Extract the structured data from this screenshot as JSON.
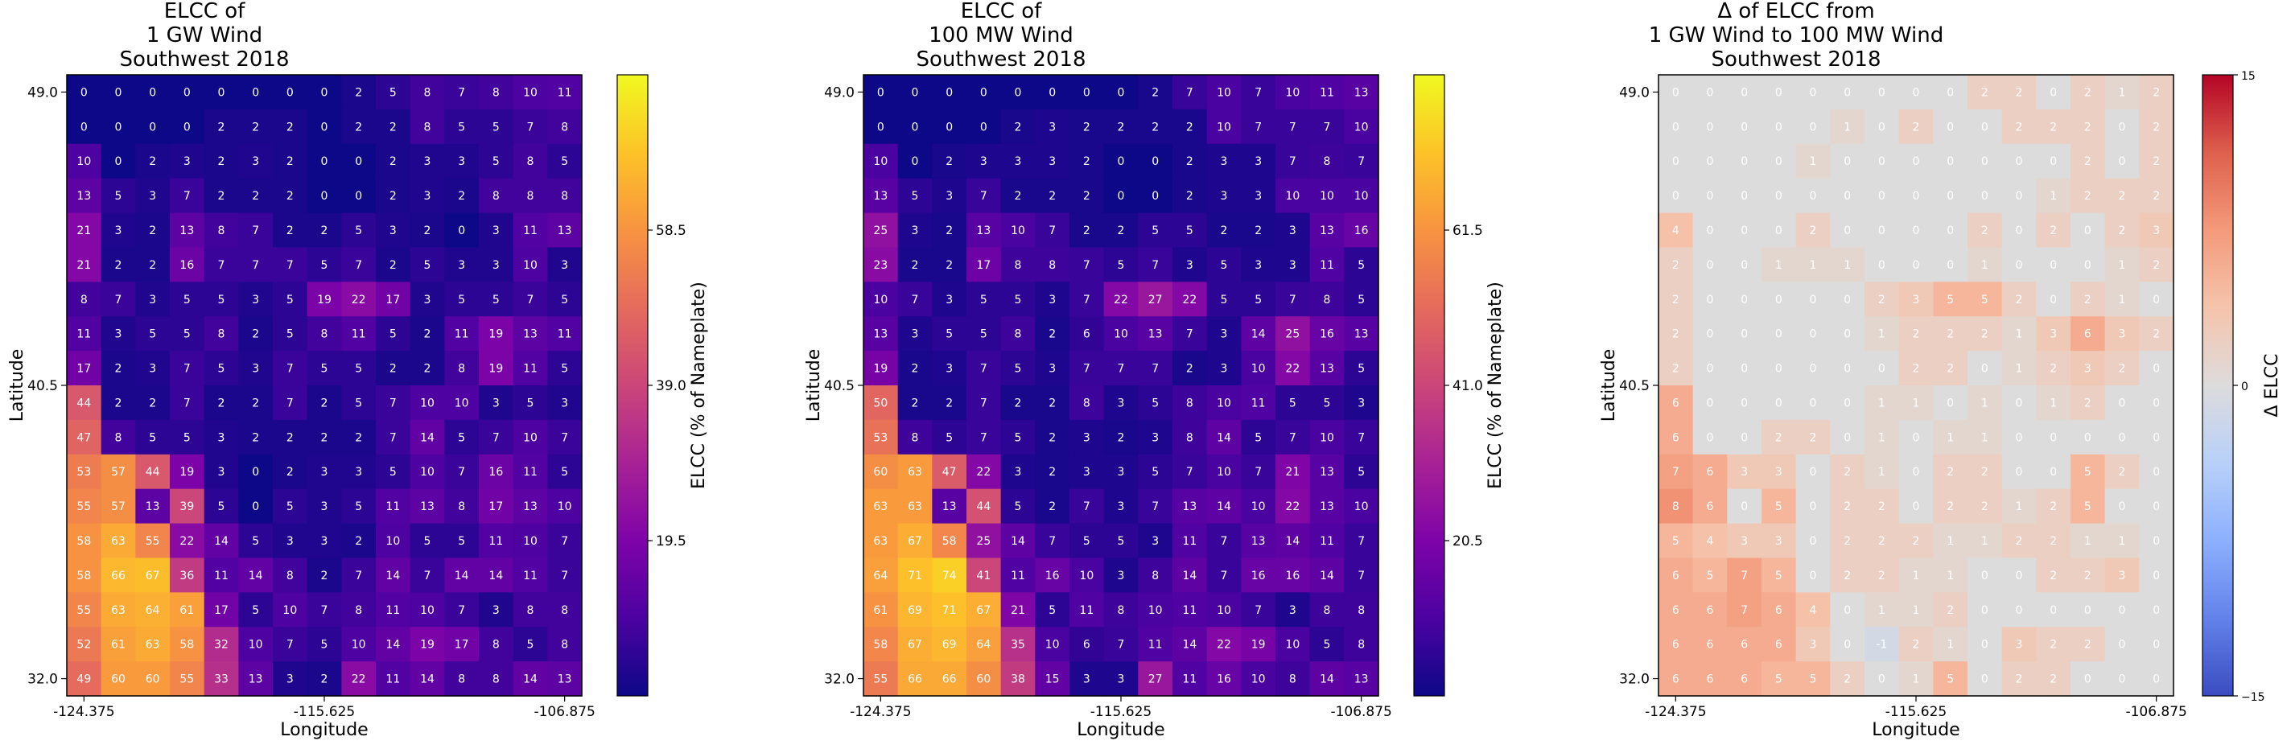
{
  "chart_data": [
    {
      "type": "heatmap",
      "title": "ELCC of\n1 GW Wind\nSouthwest 2018",
      "xlabel": "Longitude",
      "ylabel": "Latitude",
      "xticks": [
        "-124.375",
        "-115.625",
        "-106.875"
      ],
      "yticks": [
        "49.0",
        "40.5",
        "32.0"
      ],
      "colorbar_label": "ELCC (% of Nameplate)",
      "colorbar_ticks": [
        19.5,
        39.0,
        58.5
      ],
      "colorbar_tick_labels": [
        "19.5",
        "39.0",
        "58.5"
      ],
      "colormap": "plasma",
      "vmin": 0,
      "vmax": 78,
      "values": [
        [
          0,
          0,
          0,
          0,
          0,
          0,
          0,
          0,
          2,
          5,
          8,
          7,
          8,
          10,
          11
        ],
        [
          0,
          0,
          0,
          0,
          2,
          2,
          2,
          0,
          2,
          2,
          8,
          5,
          5,
          7,
          8
        ],
        [
          10,
          0,
          2,
          3,
          2,
          3,
          2,
          0,
          0,
          2,
          3,
          3,
          5,
          8,
          5
        ],
        [
          13,
          5,
          3,
          7,
          2,
          2,
          2,
          0,
          0,
          2,
          3,
          2,
          8,
          8,
          8
        ],
        [
          21,
          3,
          2,
          13,
          8,
          7,
          2,
          2,
          5,
          3,
          2,
          0,
          3,
          11,
          13
        ],
        [
          21,
          2,
          2,
          16,
          7,
          7,
          7,
          5,
          7,
          2,
          5,
          3,
          3,
          10,
          3
        ],
        [
          8,
          7,
          3,
          5,
          5,
          3,
          5,
          19,
          22,
          17,
          3,
          5,
          5,
          7,
          5
        ],
        [
          11,
          3,
          5,
          5,
          8,
          2,
          5,
          8,
          11,
          5,
          2,
          11,
          19,
          13,
          11
        ],
        [
          17,
          2,
          3,
          7,
          5,
          3,
          7,
          5,
          5,
          2,
          2,
          8,
          19,
          11,
          5
        ],
        [
          44,
          2,
          2,
          7,
          2,
          2,
          7,
          2,
          5,
          7,
          10,
          10,
          3,
          5,
          3
        ],
        [
          47,
          8,
          5,
          5,
          3,
          2,
          2,
          2,
          2,
          7,
          14,
          5,
          7,
          10,
          7
        ],
        [
          53,
          57,
          44,
          19,
          3,
          0,
          2,
          3,
          3,
          5,
          10,
          7,
          16,
          11,
          5
        ],
        [
          55,
          57,
          13,
          39,
          5,
          0,
          5,
          3,
          5,
          11,
          13,
          8,
          17,
          13,
          10
        ],
        [
          58,
          63,
          55,
          22,
          14,
          5,
          3,
          3,
          2,
          10,
          5,
          5,
          11,
          10,
          7
        ],
        [
          58,
          66,
          67,
          36,
          11,
          14,
          8,
          2,
          7,
          14,
          7,
          14,
          14,
          11,
          7
        ],
        [
          55,
          63,
          64,
          61,
          17,
          5,
          10,
          7,
          8,
          11,
          10,
          7,
          3,
          8,
          8
        ],
        [
          52,
          61,
          63,
          58,
          32,
          10,
          7,
          5,
          10,
          14,
          19,
          17,
          8,
          5,
          8
        ],
        [
          49,
          60,
          60,
          55,
          33,
          13,
          3,
          2,
          22,
          11,
          14,
          8,
          8,
          14,
          13
        ]
      ]
    },
    {
      "type": "heatmap",
      "title": "ELCC of\n100 MW Wind\nSouthwest 2018",
      "xlabel": "Longitude",
      "ylabel": "Latitude",
      "xticks": [
        "-124.375",
        "-115.625",
        "-106.875"
      ],
      "yticks": [
        "49.0",
        "40.5",
        "32.0"
      ],
      "colorbar_label": "ELCC (% of Nameplate)",
      "colorbar_ticks": [
        20.5,
        41.0,
        61.5
      ],
      "colorbar_tick_labels": [
        "20.5",
        "41.0",
        "61.5"
      ],
      "colormap": "plasma",
      "vmin": 0,
      "vmax": 82,
      "values": [
        [
          0,
          0,
          0,
          0,
          0,
          0,
          0,
          0,
          2,
          7,
          10,
          7,
          10,
          11,
          13
        ],
        [
          0,
          0,
          0,
          0,
          2,
          3,
          2,
          2,
          2,
          2,
          10,
          7,
          7,
          7,
          10
        ],
        [
          10,
          0,
          2,
          3,
          3,
          3,
          2,
          0,
          0,
          2,
          3,
          3,
          7,
          8,
          7
        ],
        [
          13,
          5,
          3,
          7,
          2,
          2,
          2,
          0,
          0,
          2,
          3,
          3,
          10,
          10,
          10
        ],
        [
          25,
          3,
          2,
          13,
          10,
          7,
          2,
          2,
          5,
          5,
          2,
          2,
          3,
          13,
          16
        ],
        [
          23,
          2,
          2,
          17,
          8,
          8,
          7,
          5,
          7,
          3,
          5,
          3,
          3,
          11,
          5
        ],
        [
          10,
          7,
          3,
          5,
          5,
          3,
          7,
          22,
          27,
          22,
          5,
          5,
          7,
          8,
          5
        ],
        [
          13,
          3,
          5,
          5,
          8,
          2,
          6,
          10,
          13,
          7,
          3,
          14,
          25,
          16,
          13
        ],
        [
          19,
          2,
          3,
          7,
          5,
          3,
          7,
          7,
          7,
          2,
          3,
          10,
          22,
          13,
          5
        ],
        [
          50,
          2,
          2,
          7,
          2,
          2,
          8,
          3,
          5,
          8,
          10,
          11,
          5,
          5,
          3
        ],
        [
          53,
          8,
          5,
          7,
          5,
          2,
          3,
          2,
          3,
          8,
          14,
          5,
          7,
          10,
          7
        ],
        [
          60,
          63,
          47,
          22,
          3,
          2,
          3,
          3,
          5,
          7,
          10,
          7,
          21,
          13,
          5
        ],
        [
          63,
          63,
          13,
          44,
          5,
          2,
          7,
          3,
          7,
          13,
          14,
          10,
          22,
          13,
          10
        ],
        [
          63,
          67,
          58,
          25,
          14,
          7,
          5,
          5,
          3,
          11,
          7,
          13,
          14,
          11,
          7
        ],
        [
          64,
          71,
          74,
          41,
          11,
          16,
          10,
          3,
          8,
          14,
          7,
          16,
          16,
          14,
          7
        ],
        [
          61,
          69,
          71,
          67,
          21,
          5,
          11,
          8,
          10,
          11,
          10,
          7,
          3,
          8,
          8
        ],
        [
          58,
          67,
          69,
          64,
          35,
          10,
          6,
          7,
          11,
          14,
          22,
          19,
          10,
          5,
          8
        ],
        [
          55,
          66,
          66,
          60,
          38,
          15,
          3,
          3,
          27,
          11,
          16,
          10,
          8,
          14,
          13
        ]
      ]
    },
    {
      "type": "heatmap",
      "title": "Δ of ELCC from\n1 GW Wind to 100 MW Wind\nSouthwest 2018",
      "xlabel": "Longitude",
      "ylabel": "Latitude",
      "xticks": [
        "-124.375",
        "-115.625",
        "-106.875"
      ],
      "yticks": [
        "49.0",
        "40.5",
        "32.0"
      ],
      "colorbar_label": "Δ ELCC",
      "colorbar_ticks": [
        -15,
        0,
        15
      ],
      "colorbar_tick_labels": [
        "−15",
        "0",
        "15"
      ],
      "colormap": "coolwarm",
      "vmin": -15,
      "vmax": 15,
      "values": [
        [
          0,
          0,
          0,
          0,
          0,
          0,
          0,
          0,
          0,
          2,
          2,
          0,
          2,
          1,
          2
        ],
        [
          0,
          0,
          0,
          0,
          0,
          1,
          0,
          2,
          0,
          0,
          2,
          2,
          2,
          0,
          2
        ],
        [
          0,
          0,
          0,
          0,
          1,
          0,
          0,
          0,
          0,
          0,
          0,
          0,
          2,
          0,
          2
        ],
        [
          0,
          0,
          0,
          0,
          0,
          0,
          0,
          0,
          0,
          0,
          0,
          1,
          2,
          2,
          2
        ],
        [
          4,
          0,
          0,
          0,
          2,
          0,
          0,
          0,
          0,
          2,
          0,
          2,
          0,
          2,
          3
        ],
        [
          2,
          0,
          0,
          1,
          1,
          1,
          0,
          0,
          0,
          1,
          0,
          0,
          0,
          1,
          2
        ],
        [
          2,
          0,
          0,
          0,
          0,
          0,
          2,
          3,
          5,
          5,
          2,
          0,
          2,
          1,
          0
        ],
        [
          2,
          0,
          0,
          0,
          0,
          0,
          1,
          2,
          2,
          2,
          1,
          3,
          6,
          3,
          2
        ],
        [
          2,
          0,
          0,
          0,
          0,
          0,
          0,
          2,
          2,
          0,
          1,
          2,
          3,
          2,
          0
        ],
        [
          6,
          0,
          0,
          0,
          0,
          0,
          1,
          1,
          0,
          1,
          0,
          1,
          2,
          0,
          0
        ],
        [
          6,
          0,
          0,
          2,
          2,
          0,
          1,
          0,
          1,
          1,
          0,
          0,
          0,
          0,
          0
        ],
        [
          7,
          6,
          3,
          3,
          0,
          2,
          1,
          0,
          2,
          2,
          0,
          0,
          5,
          2,
          0
        ],
        [
          8,
          6,
          0,
          5,
          0,
          2,
          2,
          0,
          2,
          2,
          1,
          2,
          5,
          0,
          0
        ],
        [
          5,
          4,
          3,
          3,
          0,
          2,
          2,
          2,
          1,
          1,
          2,
          2,
          1,
          1,
          0
        ],
        [
          6,
          5,
          7,
          5,
          0,
          2,
          2,
          1,
          1,
          0,
          0,
          2,
          2,
          3,
          0
        ],
        [
          6,
          6,
          7,
          6,
          4,
          0,
          1,
          1,
          2,
          0,
          0,
          0,
          0,
          0,
          0
        ],
        [
          6,
          6,
          6,
          6,
          3,
          0,
          -1,
          2,
          1,
          0,
          3,
          2,
          2,
          0,
          0
        ],
        [
          6,
          6,
          6,
          5,
          5,
          2,
          0,
          1,
          5,
          0,
          2,
          2,
          0,
          0,
          0
        ]
      ]
    }
  ]
}
